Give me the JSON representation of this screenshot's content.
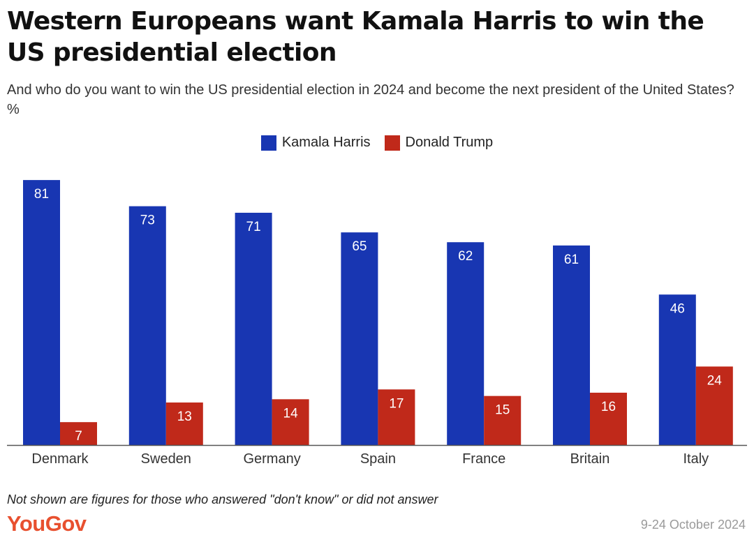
{
  "colors": {
    "harris": "#1836b2",
    "trump": "#c0291a",
    "axis": "#555555",
    "brand": "#e8502f"
  },
  "chart_data": {
    "type": "bar",
    "title": "Western Europeans want Kamala Harris to win the US presidential election",
    "subtitle": "And who do you want to win the US presidential election in 2024 and become the next president of the United States? %",
    "categories": [
      "Denmark",
      "Sweden",
      "Germany",
      "Spain",
      "France",
      "Britain",
      "Italy"
    ],
    "series": [
      {
        "name": "Kamala Harris",
        "color": "#1836b2",
        "values": [
          81,
          73,
          71,
          65,
          62,
          61,
          46
        ]
      },
      {
        "name": "Donald Trump",
        "color": "#c0291a",
        "values": [
          7,
          13,
          14,
          17,
          15,
          16,
          24
        ]
      }
    ],
    "xlabel": "",
    "ylabel": "",
    "ylim": [
      0,
      85
    ],
    "grid": false,
    "legend_position": "top-center"
  },
  "footer": {
    "note": "Not shown are figures for those who answered \"don't know\" or did not answer",
    "brand": "YouGov",
    "date": "9-24 October 2024"
  }
}
